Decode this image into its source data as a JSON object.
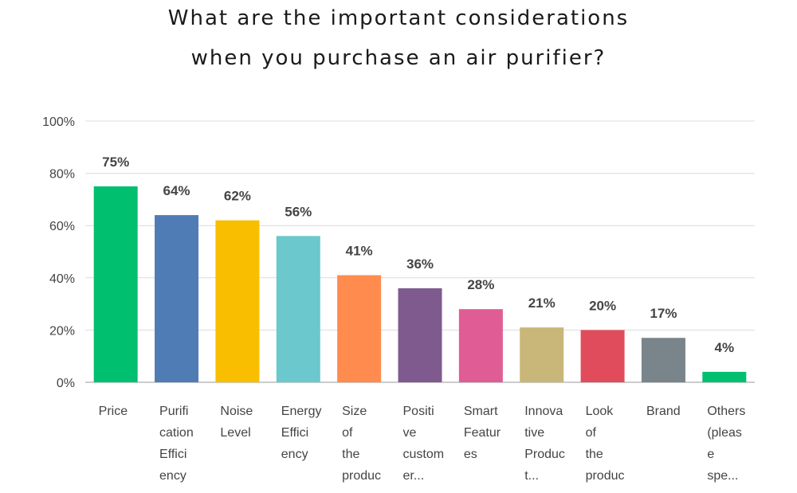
{
  "title": {
    "line1": "What are the important considerations",
    "line2": "when you purchase an air purifier?"
  },
  "chart_data": {
    "type": "bar",
    "ylim": [
      0,
      100
    ],
    "yticks": [
      "0%",
      "20%",
      "40%",
      "60%",
      "80%",
      "100%"
    ],
    "grid": true,
    "categories": [
      [
        "Price"
      ],
      [
        "Purifi",
        "cation",
        "Effici",
        "ency"
      ],
      [
        "Noise",
        "Level"
      ],
      [
        "Energy",
        "Effici",
        "ency"
      ],
      [
        "Size",
        "of",
        "the",
        "produc"
      ],
      [
        "Positi",
        "ve",
        "custom",
        "er..."
      ],
      [
        "Smart",
        "Featur",
        "es"
      ],
      [
        "Innova",
        "tive",
        "Produc",
        "t..."
      ],
      [
        "Look",
        "of",
        "the",
        "produc"
      ],
      [
        "Brand"
      ],
      [
        "Others",
        "(pleas",
        "e",
        "spe..."
      ]
    ],
    "values": [
      75,
      64,
      62,
      56,
      41,
      36,
      28,
      21,
      20,
      17,
      4
    ],
    "data_labels": [
      "75%",
      "64%",
      "62%",
      "56%",
      "41%",
      "36%",
      "28%",
      "21%",
      "20%",
      "17%",
      "4%"
    ],
    "colors": [
      "#00bf6f",
      "#507cb6",
      "#f9be00",
      "#6bc8cd",
      "#ff8b4f",
      "#7f5a8e",
      "#e05c94",
      "#c8b778",
      "#e04c5b",
      "#79858b",
      "#00bf6f"
    ]
  }
}
